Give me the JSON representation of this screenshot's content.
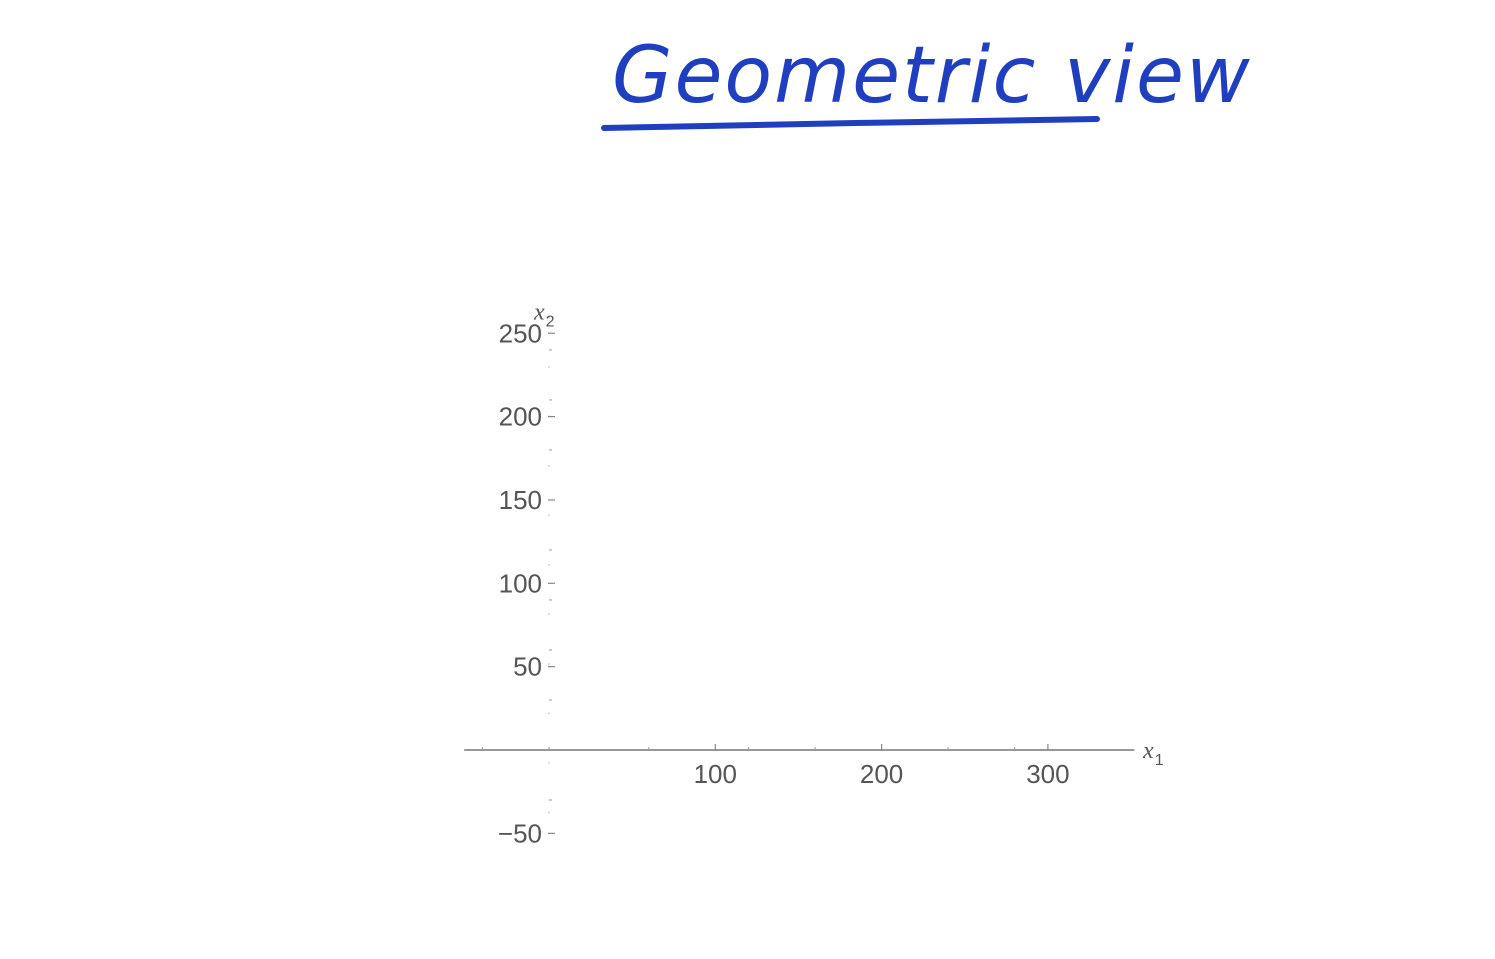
{
  "title": "Geometric view",
  "colors": {
    "ink": "#1f3fbf",
    "axis": "#777777",
    "tick_text": "#555555"
  },
  "chart_data": {
    "type": "scatter",
    "series": [],
    "x_axis": {
      "label": "x",
      "label_subscript": "1",
      "range": [
        -50,
        350
      ],
      "major_ticks": [
        100,
        200,
        300
      ],
      "minor_ticks": [
        -40,
        0,
        60,
        120,
        160,
        240,
        280,
        360
      ],
      "tick_labels": [
        "100",
        "200",
        "300"
      ]
    },
    "y_axis": {
      "label": "x",
      "label_subscript": "2",
      "range": [
        -60,
        260
      ],
      "major_ticks": [
        -50,
        50,
        100,
        150,
        200,
        250
      ],
      "minor_ticks": [
        -30,
        30,
        60,
        90,
        120,
        180,
        210,
        240
      ],
      "tick_labels": [
        "-50",
        "50",
        "100",
        "150",
        "200",
        "250"
      ]
    },
    "grid": false
  }
}
